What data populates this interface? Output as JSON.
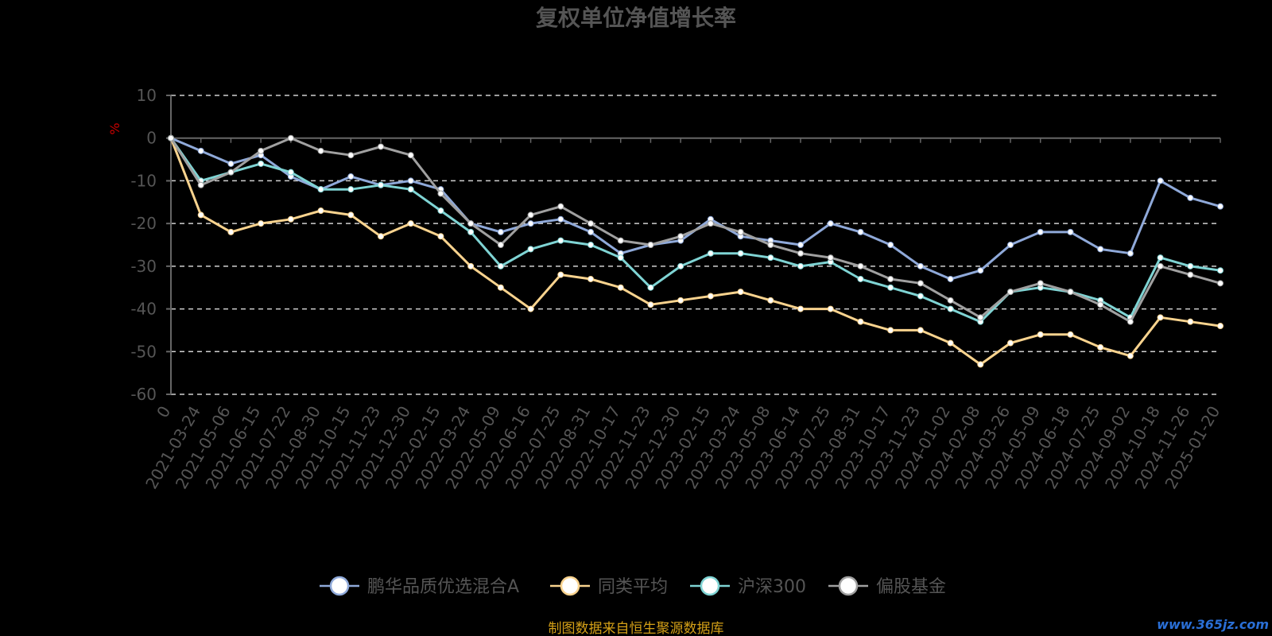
{
  "chart_data": {
    "type": "line",
    "title": "复权单位净值增长率",
    "ylabel": "%",
    "ylim": [
      -60,
      10
    ],
    "yticks": [
      10,
      0,
      -10,
      -20,
      -30,
      -40,
      -50,
      -60
    ],
    "grid": true,
    "legend_position": "bottom",
    "categories": [
      "0",
      "2021-03-24",
      "2021-05-06",
      "2021-06-15",
      "2021-07-22",
      "2021-08-30",
      "2021-10-15",
      "2021-11-23",
      "2021-12-30",
      "2022-02-15",
      "2022-03-24",
      "2022-05-09",
      "2022-06-16",
      "2022-07-25",
      "2022-08-31",
      "2022-10-17",
      "2022-11-23",
      "2022-12-30",
      "2023-02-15",
      "2023-03-24",
      "2023-05-08",
      "2023-06-14",
      "2023-07-25",
      "2023-08-31",
      "2023-10-17",
      "2023-11-23",
      "2024-01-02",
      "2024-02-08",
      "2024-03-26",
      "2024-05-09",
      "2024-06-18",
      "2024-07-25",
      "2024-09-02",
      "2024-10-18",
      "2024-11-26",
      "2025-01-20"
    ],
    "series": [
      {
        "name": "鹏华品质优选混合A",
        "color": "#8fa9d9",
        "values": [
          0,
          -3,
          -6,
          -4,
          -9,
          -12,
          -9,
          -11,
          -10,
          -12,
          -20,
          -22,
          -20,
          -19,
          -22,
          -27,
          -25,
          -24,
          -19,
          -23,
          -24,
          -25,
          -20,
          -22,
          -25,
          -30,
          -33,
          -31,
          -25,
          -22,
          -22,
          -26,
          -27,
          -10,
          -14,
          -16
        ]
      },
      {
        "name": "同类平均",
        "color": "#f9d38e",
        "values": [
          0,
          -18,
          -22,
          -20,
          -19,
          -17,
          -18,
          -23,
          -20,
          -23,
          -30,
          -35,
          -40,
          -32,
          -33,
          -35,
          -39,
          -38,
          -37,
          -36,
          -38,
          -40,
          -40,
          -43,
          -45,
          -45,
          -48,
          -53,
          -48,
          -46,
          -46,
          -49,
          -51,
          -42,
          -43,
          -44
        ]
      },
      {
        "name": "沪深300",
        "color": "#7fd4d4",
        "values": [
          0,
          -10,
          -8,
          -6,
          -8,
          -12,
          -12,
          -11,
          -12,
          -17,
          -22,
          -30,
          -26,
          -24,
          -25,
          -28,
          -35,
          -30,
          -27,
          -27,
          -28,
          -30,
          -29,
          -33,
          -35,
          -37,
          -40,
          -43,
          -36,
          -35,
          -36,
          -38,
          -42,
          -28,
          -30,
          -31
        ]
      },
      {
        "name": "偏股基金",
        "color": "#a0a0a0",
        "values": [
          0,
          -11,
          -8,
          -3,
          0,
          -3,
          -4,
          -2,
          -4,
          -13,
          -20,
          -25,
          -18,
          -16,
          -20,
          -24,
          -25,
          -23,
          -20,
          -22,
          -25,
          -27,
          -28,
          -30,
          -33,
          -34,
          -38,
          -42,
          -36,
          -34,
          -36,
          -39,
          -43,
          -30,
          -32,
          -34
        ]
      }
    ]
  },
  "source_text": "制图数据来自恒生聚源数据库",
  "watermark_text": "www.365jz.com"
}
